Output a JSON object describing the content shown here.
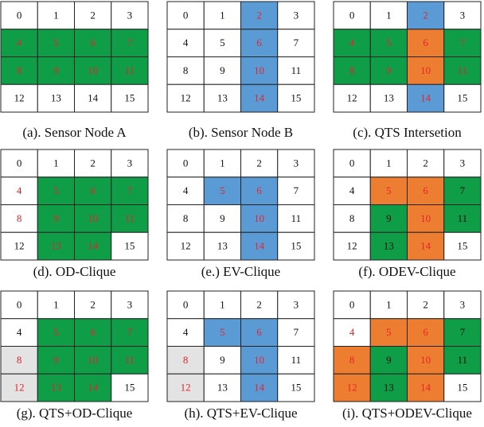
{
  "palette": {
    "w": "#ffffff",
    "g": "#0f9d48",
    "b": "#5b9bd5",
    "o": "#ed7d31",
    "s": "#e3e3e3",
    "k": "#111111",
    "r": "#e3262b"
  },
  "panels": [
    {
      "caption": "(a). Sensor Node A",
      "cells": [
        "0",
        "1",
        "2",
        "3",
        "4",
        "5",
        "6",
        "7",
        "8",
        "9",
        "10",
        "11",
        "12",
        "13",
        "14",
        "15"
      ],
      "fill": "wwwwggggggggwwww",
      "text": "kkkkrrrrrrrrkkkk"
    },
    {
      "caption": "(b). Sensor Node B",
      "cells": [
        "0",
        "1",
        "2",
        "3",
        "4",
        "5",
        "6",
        "7",
        "8",
        "9",
        "10",
        "11",
        "12",
        "13",
        "14",
        "15"
      ],
      "fill": "wwbwwwbwwwbwwwbw",
      "text": "kkrkkkrkkkrkkkrk"
    },
    {
      "caption": "(c). QTS Intersetion",
      "cells": [
        "0",
        "1",
        "2",
        "3",
        "4",
        "5",
        "6",
        "7",
        "8",
        "9",
        "10",
        "11",
        "12",
        "13",
        "14",
        "15"
      ],
      "fill": "wwbwggogggogwwbw",
      "text": "kkrkrrrrrrrrkkrk"
    },
    {
      "caption": "(d). OD-Clique",
      "cells": [
        "0",
        "1",
        "2",
        "3",
        "4",
        "5",
        "6",
        "7",
        "8",
        "9",
        "10",
        "11",
        "12",
        "13",
        "14",
        "15"
      ],
      "fill": "wwwwwgggwgggwggw",
      "text": "kkkkrrrrrrrrkrrk"
    },
    {
      "caption": "(e.) EV-Clique",
      "cells": [
        "0",
        "1",
        "2",
        "3",
        "4",
        "5",
        "6",
        "7",
        "8",
        "9",
        "10",
        "11",
        "12",
        "13",
        "14",
        "15"
      ],
      "fill": "wwwwwbbwwwbwwwbw",
      "text": "kkkkkrrkkkrkkkrk"
    },
    {
      "caption": "(f). ODEV-Clique",
      "cells": [
        "0",
        "1",
        "2",
        "3",
        "4",
        "5",
        "6",
        "7",
        "8",
        "9",
        "10",
        "11",
        "12",
        "13",
        "14",
        "15"
      ],
      "fill": "wwwwwoogwgogwgow",
      "text": "kkkkkrrkkkrkkkrk"
    },
    {
      "caption": "(g). QTS+OD-Clique",
      "cells": [
        "0",
        "1",
        "2",
        "3",
        "4",
        "5",
        "6",
        "7",
        "8",
        "9",
        "10",
        "11",
        "12",
        "13",
        "14",
        "15"
      ],
      "fill": "wwwwwgggsgggsggw",
      "text": "kkkkkrrrrrrrrrrk"
    },
    {
      "caption": "(h). QTS+EV-Clique",
      "cells": [
        "0",
        "1",
        "2",
        "3",
        "4",
        "5",
        "6",
        "7",
        "8",
        "9",
        "10",
        "11",
        "12",
        "13",
        "14",
        "15"
      ],
      "fill": "wwwwwbbwswbwswbw",
      "text": "kkkkkrrkrkrkrkrk"
    },
    {
      "caption": "(i). QTS+ODEV-Clique",
      "cells": [
        "0",
        "1",
        "2",
        "3",
        "4",
        "5",
        "6",
        "7",
        "8",
        "9",
        "10",
        "11",
        "12",
        "13",
        "14",
        "15"
      ],
      "fill": "wwwwwoogogogogow",
      "text": "kkkkrrrkrkrkrkrk"
    }
  ]
}
